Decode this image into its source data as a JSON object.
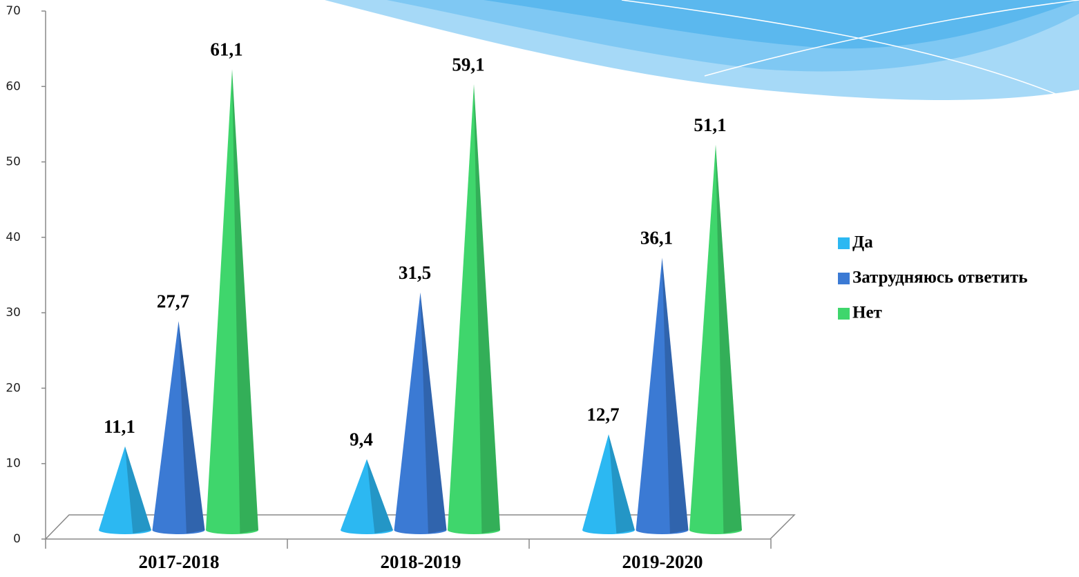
{
  "chart_data": {
    "type": "cone",
    "categories": [
      "2017-2018",
      "2018-2019",
      "2019-2020"
    ],
    "series": [
      {
        "name": "Да",
        "color": "#2cb8f2",
        "values": [
          11.1,
          9.4,
          12.7
        ],
        "value_labels": [
          "11,1",
          "9,4",
          "12,7"
        ]
      },
      {
        "name": "Затрудняюсь ответить",
        "color": "#3b7ad4",
        "values": [
          27.7,
          31.5,
          36.1
        ],
        "value_labels": [
          "27,7",
          "31,5",
          "36,1"
        ]
      },
      {
        "name": "Нет",
        "color": "#3fd66c",
        "values": [
          61.1,
          59.1,
          51.1
        ],
        "value_labels": [
          "61,1",
          "59,1",
          "51,1"
        ]
      }
    ],
    "ylim": [
      0,
      70
    ],
    "yticks": [
      0,
      10,
      20,
      30,
      40,
      50,
      60,
      70
    ],
    "legend": "right"
  }
}
